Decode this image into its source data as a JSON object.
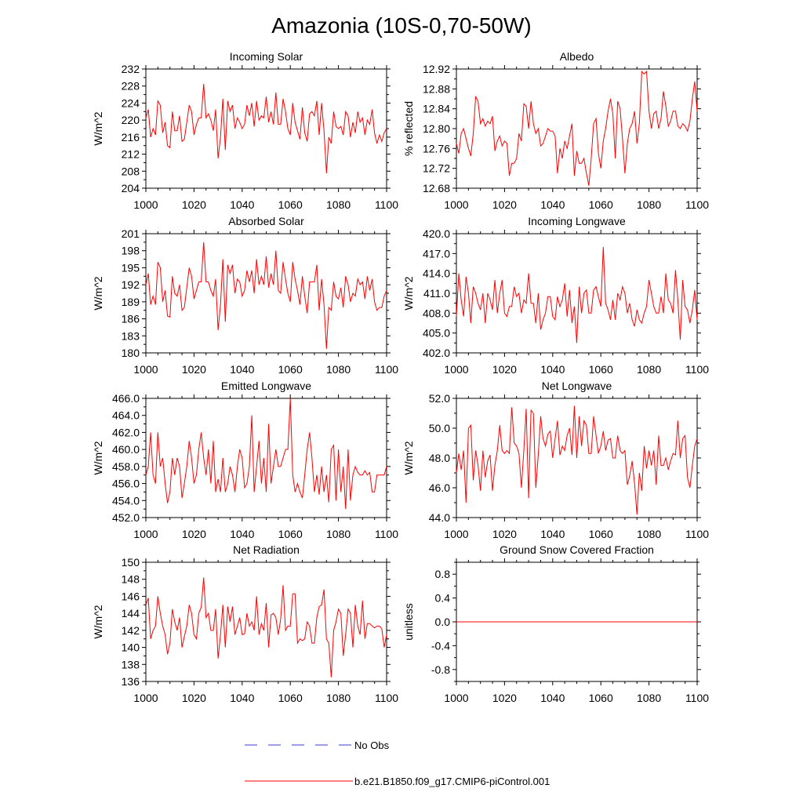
{
  "title": "Amazonia (10S-0,70-50W)",
  "colors": {
    "model": "#ff0000",
    "obs": "#3b3bd6",
    "axis": "#000000"
  },
  "legend": {
    "obs_label": "No Obs",
    "model_label": "b.e21.B1850.f09_g17.CMIP6-piControl.001"
  },
  "chart_data": [
    {
      "type": "line",
      "title": "Incoming Solar",
      "ylabel": "W/m^2",
      "ylim": [
        204,
        232
      ],
      "yticks": [
        "204",
        "208",
        "212",
        "216",
        "220",
        "224",
        "228",
        "232"
      ],
      "xlim": [
        1000,
        1100
      ],
      "xticks": [
        "1000",
        "1020",
        "1040",
        "1060",
        "1080",
        "1100"
      ],
      "series": [
        {
          "name": "b.e21.B1850.f09_g17.CMIP6-piControl.001",
          "x_start": 1000,
          "values": [
            220.5,
            222.5,
            216,
            218,
            216.5,
            224.5,
            223.5,
            217,
            219.5,
            214,
            213.5,
            222,
            217.5,
            217.5,
            221,
            215,
            215.5,
            219.5,
            223.5,
            222,
            216.5,
            219,
            220.5,
            220.5,
            228.5,
            220.5,
            221.5,
            220,
            217.5,
            222.5,
            211,
            216,
            225,
            213,
            224.5,
            222,
            223.5,
            218,
            220.5,
            219.5,
            218,
            219,
            223.5,
            221,
            224,
            218.5,
            224.5,
            220,
            221,
            220.5,
            225.5,
            219.5,
            222,
            219,
            226.5,
            219,
            219,
            225,
            222,
            218,
            216.5,
            224,
            219.5,
            217.5,
            215.5,
            223,
            217,
            215,
            221.5,
            222,
            221,
            224.5,
            216.5,
            224,
            217.5,
            207.5,
            216,
            214.5,
            222,
            218.5,
            218,
            218.5,
            216.5,
            222,
            221,
            216,
            219.5,
            217,
            222,
            219.5,
            220.5,
            216.5,
            220,
            219,
            222.5,
            217,
            214.5,
            216.5,
            215,
            217,
            218
          ]
        }
      ]
    },
    {
      "type": "line",
      "title": "Albedo",
      "ylabel": "% reflected",
      "ylim": [
        12.68,
        12.92
      ],
      "yticks": [
        "12.68",
        "12.72",
        "12.76",
        "12.80",
        "12.84",
        "12.88",
        "12.92"
      ],
      "xlim": [
        1000,
        1100
      ],
      "xticks": [
        "1000",
        "1020",
        "1040",
        "1060",
        "1080",
        "1100"
      ],
      "series": [
        {
          "name": "b.e21.B1850.f09_g17.CMIP6-piControl.001",
          "x_start": 1000,
          "values": [
            12.77,
            12.75,
            12.79,
            12.8,
            12.78,
            12.76,
            12.745,
            12.79,
            12.865,
            12.855,
            12.81,
            12.82,
            12.805,
            12.815,
            12.81,
            12.825,
            12.755,
            12.775,
            12.785,
            12.765,
            12.775,
            12.77,
            12.705,
            12.73,
            12.73,
            12.74,
            12.79,
            12.775,
            12.85,
            12.845,
            12.8,
            12.855,
            12.81,
            12.79,
            12.8,
            12.765,
            12.77,
            12.785,
            12.8,
            12.795,
            12.795,
            12.785,
            12.71,
            12.76,
            12.74,
            12.775,
            12.76,
            12.785,
            12.81,
            12.705,
            12.755,
            12.73,
            12.73,
            12.74,
            12.71,
            12.685,
            12.74,
            12.81,
            12.82,
            12.75,
            12.72,
            12.775,
            12.8,
            12.835,
            12.86,
            12.83,
            12.74,
            12.855,
            12.84,
            12.78,
            12.71,
            12.77,
            12.8,
            12.81,
            12.835,
            12.77,
            12.81,
            12.915,
            12.91,
            12.915,
            12.835,
            12.8,
            12.83,
            12.835,
            12.8,
            12.82,
            12.875,
            12.845,
            12.805,
            12.815,
            12.835,
            12.835,
            12.805,
            12.8,
            12.81,
            12.805,
            12.795,
            12.815,
            12.86,
            12.895,
            12.835
          ]
        }
      ]
    },
    {
      "type": "line",
      "title": "Absorbed Solar",
      "ylabel": "W/m^2",
      "ylim": [
        180,
        201
      ],
      "yticks": [
        "180",
        "183",
        "186",
        "189",
        "192",
        "195",
        "198",
        "201"
      ],
      "xlim": [
        1000,
        1100
      ],
      "xticks": [
        "1000",
        "1020",
        "1040",
        "1060",
        "1080",
        "1100"
      ],
      "series": [
        {
          "name": "b.e21.B1850.f09_g17.CMIP6-piControl.001",
          "x_start": 1000,
          "values": [
            192,
            194,
            188.5,
            190,
            188.5,
            196,
            195,
            189,
            191,
            186.5,
            186.3,
            193.5,
            190.5,
            190,
            192,
            187.5,
            188,
            191.5,
            195,
            193.5,
            189.5,
            191,
            192.5,
            192.5,
            199.5,
            192.5,
            192.5,
            191,
            190,
            193,
            184,
            188.5,
            196.5,
            185.5,
            195.5,
            194,
            195.5,
            190.5,
            193,
            192.5,
            190,
            191,
            194.5,
            192.5,
            194.5,
            190.5,
            196.5,
            192,
            193.5,
            192,
            197,
            191.5,
            194,
            192,
            198,
            191,
            190.5,
            196,
            193,
            190.5,
            189,
            196,
            193,
            191,
            188.5,
            193.5,
            190,
            187,
            192.5,
            192.5,
            192.5,
            195.5,
            187.5,
            193,
            188.5,
            180.7,
            188,
            187.5,
            192.5,
            190,
            189.5,
            191.5,
            188,
            193.5,
            192,
            189,
            190.5,
            190,
            193,
            192,
            192.5,
            189.5,
            193.5,
            191,
            193,
            189,
            187.5,
            188,
            188,
            190,
            191
          ]
        }
      ]
    },
    {
      "type": "line",
      "title": "Incoming Longwave",
      "ylabel": "W/m^2",
      "ylim": [
        402,
        420
      ],
      "yticks": [
        "402.0",
        "405.0",
        "408.0",
        "411.0",
        "414.0",
        "417.0",
        "420.0"
      ],
      "xlim": [
        1000,
        1100
      ],
      "xticks": [
        "1000",
        "1020",
        "1040",
        "1060",
        "1080",
        "1100"
      ],
      "series": [
        {
          "name": "b.e21.B1850.f09_g17.CMIP6-piControl.001",
          "x_start": 1000,
          "values": [
            407.5,
            414,
            410,
            407.5,
            413.5,
            411,
            406.5,
            412,
            411,
            409.5,
            408.5,
            411,
            406.5,
            411,
            410,
            408.5,
            413,
            408,
            411,
            413,
            408,
            407.5,
            409,
            409,
            412,
            410.5,
            411,
            408,
            410,
            409.5,
            414,
            409.5,
            409.5,
            406.5,
            411,
            405.5,
            407,
            408,
            410.5,
            410.5,
            407.5,
            407,
            410.5,
            409,
            410,
            412.5,
            407.5,
            411.5,
            406.5,
            409,
            403.5,
            412,
            408,
            411,
            411.5,
            408,
            408,
            411.5,
            412,
            410.5,
            409,
            418,
            409.5,
            408.5,
            407,
            410,
            407,
            411,
            410,
            412,
            411,
            408,
            409.5,
            407,
            406,
            408.5,
            407,
            406.5,
            408,
            409,
            413,
            411,
            409,
            408,
            408,
            410.5,
            408,
            414,
            410,
            409.5,
            408,
            414.5,
            410,
            404,
            413,
            409,
            408.5,
            406.5,
            408.5,
            411.5,
            407
          ]
        }
      ]
    },
    {
      "type": "line",
      "title": "Emitted Longwave",
      "ylabel": "W/m^2",
      "ylim": [
        452,
        466
      ],
      "yticks": [
        "452.0",
        "454.0",
        "456.0",
        "458.0",
        "460.0",
        "462.0",
        "464.0",
        "466.0"
      ],
      "xlim": [
        1000,
        1100
      ],
      "xticks": [
        "1000",
        "1020",
        "1040",
        "1060",
        "1080",
        "1100"
      ],
      "series": [
        {
          "name": "b.e21.B1850.f09_g17.CMIP6-piControl.001",
          "x_start": 1000,
          "values": [
            457,
            458,
            462,
            457,
            456,
            462,
            458,
            459,
            456,
            453.7,
            455,
            459,
            457,
            459,
            458,
            454.3,
            456,
            458,
            461,
            459,
            456,
            457,
            460,
            462,
            459,
            457,
            460,
            456,
            461,
            455,
            456.5,
            455,
            459,
            455,
            456,
            458,
            457,
            455,
            458,
            460,
            459,
            455.5,
            456,
            458,
            464,
            455,
            458,
            461,
            456,
            459,
            455,
            463,
            456,
            458,
            460,
            458,
            458,
            459,
            460,
            460,
            466,
            457,
            455,
            456,
            455,
            454.3,
            457,
            460,
            462,
            459,
            455,
            457,
            454.7,
            458,
            455,
            457,
            453.8,
            460,
            460.5,
            454,
            460,
            455,
            458,
            453,
            460,
            454,
            457,
            458,
            457.3,
            457,
            457,
            457.5,
            457,
            457.3,
            455,
            455,
            457,
            457,
            457,
            457,
            458
          ]
        }
      ]
    },
    {
      "type": "line",
      "title": "Net Longwave",
      "ylabel": "W/m^2",
      "ylim": [
        44,
        52
      ],
      "yticks": [
        "44.0",
        "46.0",
        "48.0",
        "50.0",
        "52.0"
      ],
      "xlim": [
        1000,
        1100
      ],
      "xticks": [
        "1000",
        "1020",
        "1040",
        "1060",
        "1080",
        "1100"
      ],
      "series": [
        {
          "name": "b.e21.B1850.f09_g17.CMIP6-piControl.001",
          "x_start": 1000,
          "values": [
            47,
            48.3,
            47.2,
            48.5,
            45,
            50,
            50.2,
            46.5,
            48.5,
            47.5,
            45.8,
            48.5,
            46.7,
            47.8,
            48.2,
            45.8,
            47.5,
            48.5,
            50.2,
            48.5,
            48.3,
            48.5,
            48.3,
            51.4,
            49,
            48.8,
            48.3,
            46,
            48.5,
            51.3,
            45.3,
            51.2,
            51,
            46,
            48.2,
            50.8,
            49.3,
            48.8,
            49.6,
            49.8,
            48,
            49.3,
            50.5,
            48.2,
            48.8,
            48.5,
            49.5,
            50,
            48.2,
            51.5,
            48,
            50.8,
            48.8,
            50.5,
            50.2,
            48.3,
            48.3,
            50.8,
            49.5,
            48.3,
            48.8,
            49.8,
            48.5,
            49.2,
            49.3,
            48,
            48,
            49.5,
            48.5,
            48.3,
            48.5,
            46.2,
            46.8,
            47.8,
            46.3,
            44.2,
            47,
            45.8,
            48.8,
            47.3,
            48.5,
            47.5,
            48.5,
            46.2,
            49.5,
            47.5,
            47.5,
            48,
            47.2,
            47.8,
            48.3,
            48.2,
            50.5,
            48,
            49.3,
            49.5,
            46.7,
            46,
            47.5,
            48.8,
            49.3
          ]
        }
      ]
    },
    {
      "type": "line",
      "title": "Net Radiation",
      "ylabel": "W/m^2",
      "ylim": [
        136,
        150
      ],
      "yticks": [
        "136",
        "138",
        "140",
        "142",
        "144",
        "146",
        "148",
        "150"
      ],
      "xlim": [
        1000,
        1100
      ],
      "xticks": [
        "1000",
        "1020",
        "1040",
        "1060",
        "1080",
        "1100"
      ],
      "series": [
        {
          "name": "b.e21.B1850.f09_g17.CMIP6-piControl.001",
          "x_start": 1000,
          "values": [
            145,
            145.8,
            141,
            142,
            142.5,
            146,
            144,
            142.5,
            141.5,
            139.2,
            140.5,
            144.5,
            143,
            142,
            143.5,
            140,
            141.3,
            142.5,
            145,
            144,
            141.5,
            141,
            144,
            144.7,
            148.2,
            143.5,
            144,
            142,
            142,
            144.5,
            138.7,
            141.5,
            145,
            140,
            144.8,
            143,
            144.8,
            141.5,
            142.5,
            143.5,
            141.5,
            141.6,
            144,
            142.5,
            143,
            142,
            146,
            141.5,
            142.8,
            142,
            145.2,
            140,
            143.8,
            144,
            143.5,
            141.5,
            143.3,
            147.3,
            142,
            142.5,
            142.5,
            146.3,
            146.3,
            140.5,
            141,
            140.8,
            141,
            143,
            142.5,
            140.5,
            140.5,
            143.5,
            144.8,
            145,
            146.8,
            141,
            140.5,
            136.5,
            142,
            143,
            144.5,
            144,
            139,
            141.5,
            144.5,
            144,
            140,
            145,
            142.5,
            141.5,
            145.5,
            141,
            142.8,
            142.8,
            142.5,
            142.3,
            142.5,
            142.5,
            142.2,
            140,
            141.5
          ]
        }
      ]
    },
    {
      "type": "line",
      "title": "Ground Snow Covered Fraction",
      "ylabel": "unitless",
      "ylim": [
        -1,
        1
      ],
      "yticks": [
        "-0.8",
        "-0.4",
        "0.0",
        "0.4",
        "0.8"
      ],
      "xlim": [
        1000,
        1100
      ],
      "xticks": [
        "1000",
        "1020",
        "1040",
        "1060",
        "1080",
        "1100"
      ],
      "series": [
        {
          "name": "b.e21.B1850.f09_g17.CMIP6-piControl.001",
          "x_start": 1000,
          "constant": 0
        }
      ]
    }
  ]
}
